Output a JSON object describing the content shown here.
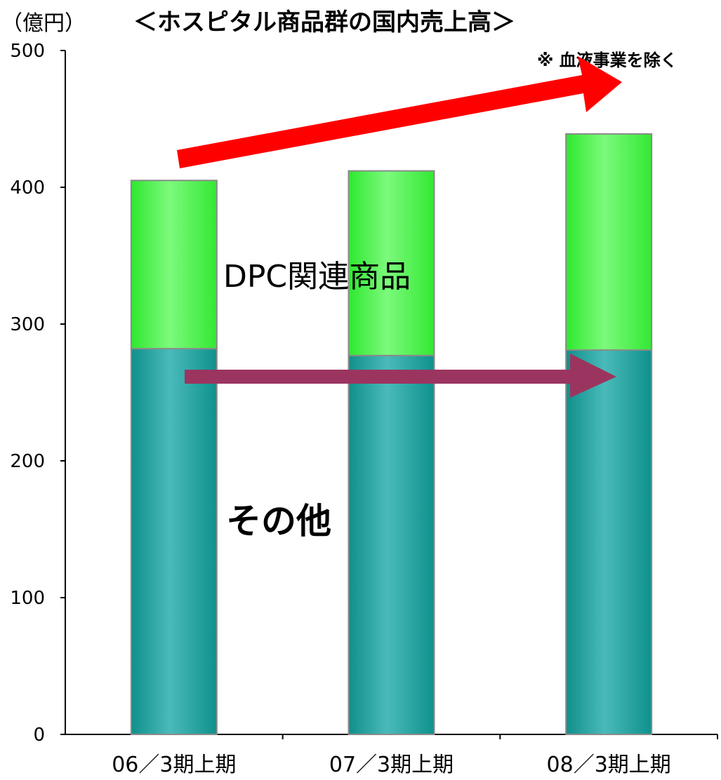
{
  "unit_label": "（億円）",
  "title": "＜ホスピタル商品群の国内売上高＞",
  "note": "※ 血液事業を除く",
  "inline_labels": {
    "dpc": "DPC関連商品",
    "other": "その他"
  },
  "colors": {
    "other_series": "#1a9e98",
    "dpc_series": "#5ef55e",
    "up_arrow": "#ff0000",
    "flat_arrow": "#9b3560"
  },
  "chart_data": {
    "type": "bar",
    "stacked": true,
    "categories": [
      "06／3期上期",
      "07／3期上期",
      "08／3期上期"
    ],
    "series": [
      {
        "name": "その他",
        "values": [
          282,
          277,
          281
        ]
      },
      {
        "name": "DPC関連商品",
        "values": [
          123,
          135,
          158
        ]
      }
    ],
    "title": "＜ホスピタル商品群の国内売上高＞",
    "ylabel": "（億円）",
    "xlabel": "",
    "ylim": [
      0,
      500
    ],
    "yticks": [
      0,
      100,
      200,
      300,
      400,
      500
    ],
    "grid": false,
    "legend": "none"
  }
}
